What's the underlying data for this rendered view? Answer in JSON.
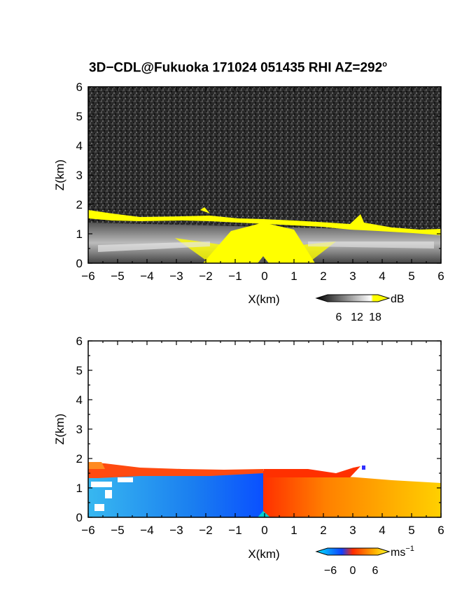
{
  "title": "3D−CDL@Fukuoka 171024 051435 RHI AZ=292",
  "title_sup": "o",
  "panels": [
    {
      "name": "reflectivity",
      "xlabel": "X(km)",
      "ylabel": "Z(km)",
      "colorbar": {
        "unit": "dB",
        "ticks": [
          "6",
          "12",
          "18"
        ],
        "colors": [
          "#000000",
          "#ffffff",
          "#ffff00"
        ]
      }
    },
    {
      "name": "doppler-velocity",
      "xlabel": "X(km)",
      "ylabel": "Z(km)",
      "colorbar": {
        "unit": "ms",
        "unit_sup": "−1",
        "ticks": [
          "−6",
          "0",
          "6"
        ],
        "colors": [
          "#00e5ff",
          "#1050ff",
          "#ff2a00",
          "#ffff30"
        ]
      }
    }
  ],
  "chart_data": [
    {
      "type": "heatmap",
      "title": "3D−CDL@Fukuoka 171024 051435 RHI AZ=292°",
      "xlabel": "X(km)",
      "ylabel": "Z(km)",
      "xlim": [
        -6,
        6
      ],
      "ylim": [
        0,
        6
      ],
      "x_ticks": [
        "−6",
        "−5",
        "−4",
        "−3",
        "−2",
        "−1",
        "0",
        "1",
        "2",
        "3",
        "4",
        "5",
        "6"
      ],
      "y_ticks": [
        "0",
        "1",
        "2",
        "3",
        "4",
        "5",
        "6"
      ],
      "colorbar": {
        "unit": "dB",
        "ticks": [
          6,
          12,
          18
        ]
      },
      "echo_top_km": [
        {
          "x": -6,
          "z": 1.75
        },
        {
          "x": -5,
          "z": 1.55
        },
        {
          "x": -4,
          "z": 1.55
        },
        {
          "x": -3,
          "z": 1.55
        },
        {
          "x": -2,
          "z": 1.6
        },
        {
          "x": -1,
          "z": 1.6
        },
        {
          "x": 0,
          "z": 1.5
        },
        {
          "x": 1,
          "z": 1.45
        },
        {
          "x": 2,
          "z": 1.3
        },
        {
          "x": 3,
          "z": 1.3
        },
        {
          "x": 3.4,
          "z": 1.6
        },
        {
          "x": 4,
          "z": 1.2
        },
        {
          "x": 5,
          "z": 1.15
        },
        {
          "x": 6,
          "z": 1.1
        }
      ]
    },
    {
      "type": "heatmap",
      "xlabel": "X(km)",
      "ylabel": "Z(km)",
      "xlim": [
        -6,
        6
      ],
      "ylim": [
        0,
        6
      ],
      "x_ticks": [
        "−6",
        "−5",
        "−4",
        "−3",
        "−2",
        "−1",
        "0",
        "1",
        "2",
        "3",
        "4",
        "5",
        "6"
      ],
      "y_ticks": [
        "0",
        "1",
        "2",
        "3",
        "4",
        "5",
        "6"
      ],
      "colorbar": {
        "unit": "ms⁻¹",
        "ticks": [
          -6,
          0,
          6
        ],
        "range": [
          -8,
          8
        ]
      },
      "regions": [
        {
          "x_range": [
            -6,
            0
          ],
          "velocity_ms": -5
        },
        {
          "x_range": [
            0,
            6
          ],
          "velocity_ms": 4
        }
      ]
    }
  ]
}
